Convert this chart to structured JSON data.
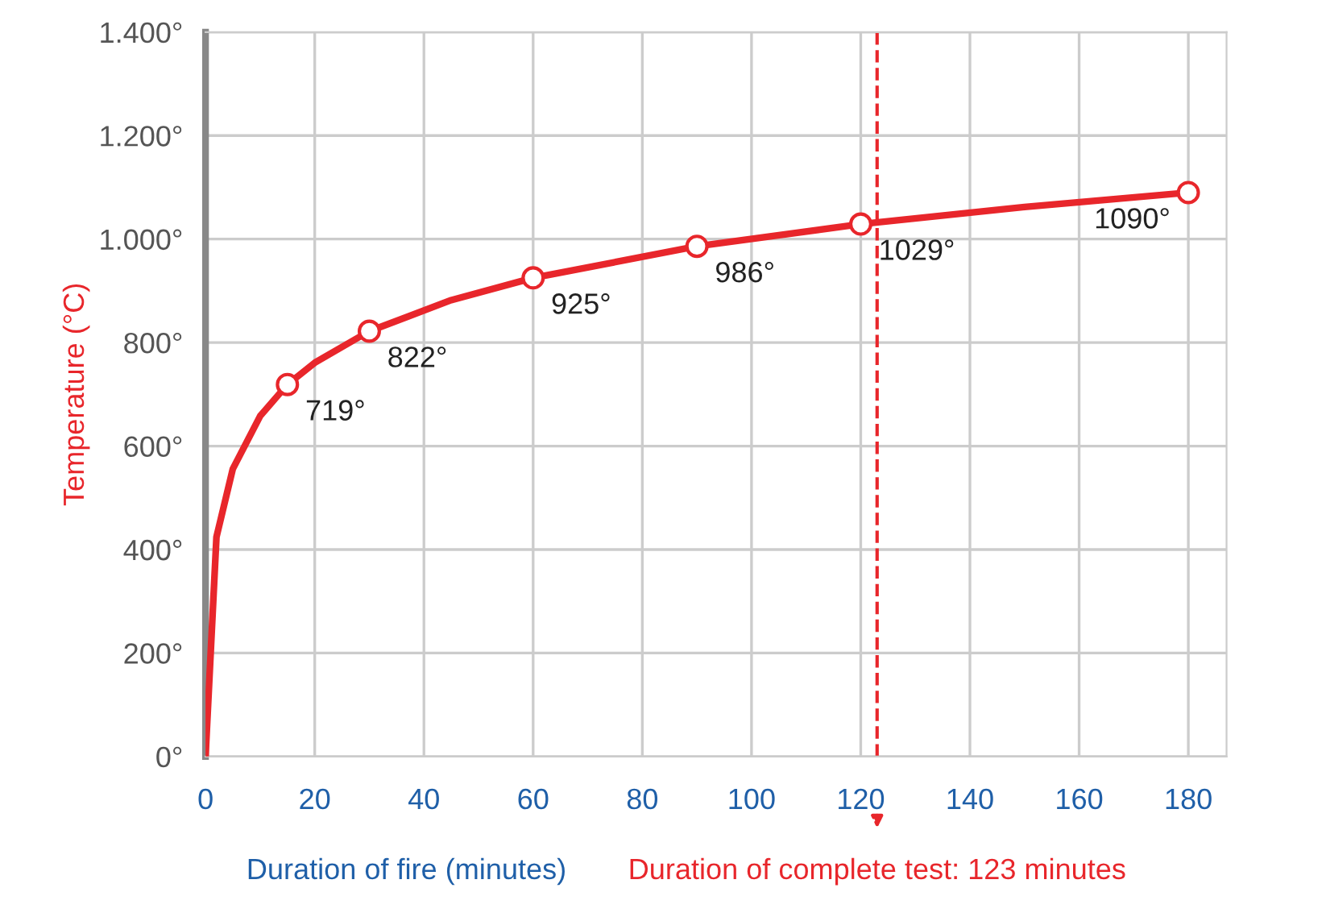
{
  "chart_data": {
    "type": "line",
    "xlabel": "Duration of fire (minutes)",
    "ylabel": "Temperature (°C)",
    "xlim": [
      0,
      187
    ],
    "ylim": [
      0,
      1400
    ],
    "xticks": [
      0,
      20,
      40,
      60,
      80,
      100,
      120,
      140,
      160,
      180
    ],
    "yticks": [
      {
        "value": 0,
        "label": "0°"
      },
      {
        "value": 200,
        "label": "200°"
      },
      {
        "value": 400,
        "label": "400°"
      },
      {
        "value": 600,
        "label": "600°"
      },
      {
        "value": 800,
        "label": "800°"
      },
      {
        "value": 1000,
        "label": "1.000°"
      },
      {
        "value": 1200,
        "label": "1.200°"
      },
      {
        "value": 1400,
        "label": "1.400°"
      }
    ],
    "grid": true,
    "series": [
      {
        "color": "#e8262b",
        "marker": "none",
        "line_style": "solid",
        "x": [
          0,
          2,
          5,
          10,
          15,
          20,
          30,
          45,
          60,
          90,
          120,
          150,
          180
        ],
        "values": [
          0,
          424,
          556,
          658,
          719,
          761,
          822,
          882,
          925,
          986,
          1029,
          1062,
          1090
        ]
      },
      {
        "type": "scatter",
        "color": "#e8262b",
        "marker": "circle",
        "x": [
          15,
          30,
          60,
          90,
          120,
          180
        ],
        "values": [
          719,
          822,
          925,
          986,
          1029,
          1090
        ],
        "value_labels": [
          "719°",
          "822°",
          "925°",
          "986°",
          "1029°",
          "1090°"
        ]
      }
    ],
    "ref_lines": [
      {
        "axis": "x",
        "value": 123,
        "label": "Duration of complete test: 123 minutes",
        "color": "#e8262b",
        "line_style": "dashed"
      }
    ]
  }
}
